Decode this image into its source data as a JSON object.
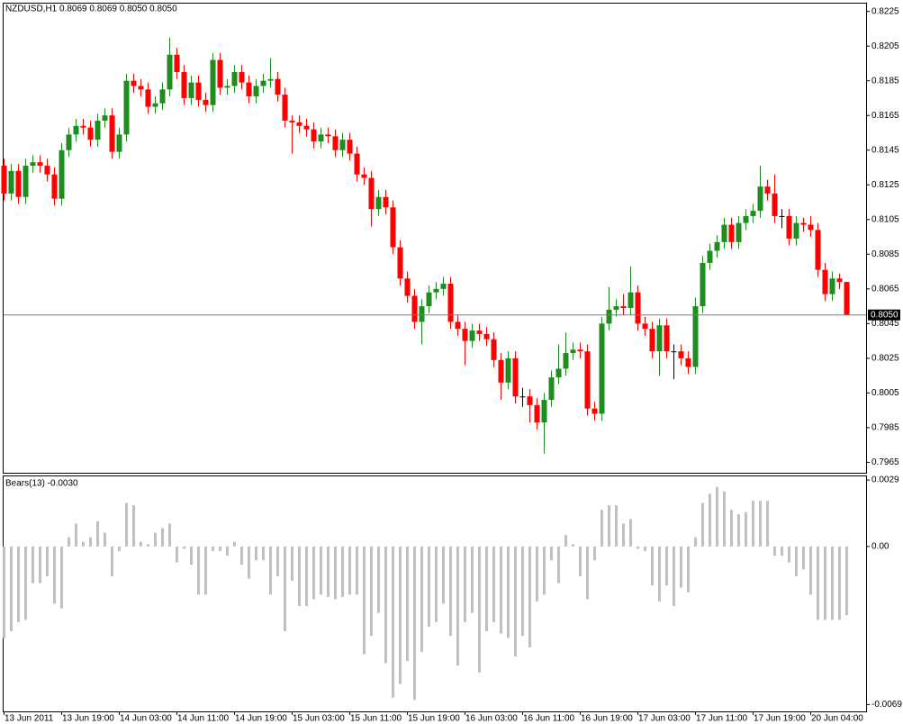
{
  "chart_data": [
    {
      "type": "candlestick",
      "title": "NZDUSD,H1  0.8069 0.8069 0.8050 0.8050",
      "categories": [
        "13 Jun 2011",
        null,
        null,
        null,
        null,
        null,
        null,
        null,
        "13 Jun 19:00",
        null,
        null,
        null,
        null,
        null,
        null,
        null,
        "14 Jun 03:00",
        null,
        null,
        null,
        null,
        null,
        null,
        null,
        "14 Jun 11:00",
        null,
        null,
        null,
        null,
        null,
        null,
        null,
        "14 Jun 19:00",
        null,
        null,
        null,
        null,
        null,
        null,
        null,
        "15 Jun 03:00",
        null,
        null,
        null,
        null,
        null,
        null,
        null,
        "15 Jun 11:00",
        null,
        null,
        null,
        null,
        null,
        null,
        null,
        "15 Jun 19:00",
        null,
        null,
        null,
        null,
        null,
        null,
        null,
        "16 Jun 03:00",
        null,
        null,
        null,
        null,
        null,
        null,
        null,
        "16 Jun 11:00",
        null,
        null,
        null,
        null,
        null,
        null,
        null,
        "16 Jun 19:00",
        null,
        null,
        null,
        null,
        null,
        null,
        null,
        "17 Jun 03:00",
        null,
        null,
        null,
        null,
        null,
        null,
        null,
        "17 Jun 11:00",
        null,
        null,
        null,
        null,
        null,
        null,
        null,
        "17 Jun 19:00",
        null,
        null,
        null,
        null,
        null,
        null,
        null,
        "20 Jun 04:00",
        null,
        null,
        null,
        null,
        null
      ],
      "open": [
        0.8136,
        0.812,
        0.8133,
        0.8118,
        0.8136,
        0.8138,
        0.8136,
        0.8131,
        0.8117,
        0.8145,
        0.8154,
        0.8159,
        0.8158,
        0.8151,
        0.8162,
        0.8165,
        0.8144,
        0.8154,
        0.8185,
        0.8182,
        0.818,
        0.817,
        0.8172,
        0.818,
        0.82,
        0.819,
        0.8175,
        0.8184,
        0.8174,
        0.8171,
        0.8197,
        0.8181,
        0.8182,
        0.819,
        0.8184,
        0.8176,
        0.8182,
        0.8185,
        0.8186,
        0.8177,
        0.8162,
        0.8161,
        0.8159,
        0.8157,
        0.815,
        0.8154,
        0.8153,
        0.8145,
        0.8151,
        0.8143,
        0.8131,
        0.8129,
        0.8111,
        0.8118,
        0.8112,
        0.8089,
        0.8071,
        0.8061,
        0.8046,
        0.8055,
        0.8063,
        0.8065,
        0.8068,
        0.8046,
        0.8042,
        0.8035,
        0.8041,
        0.8039,
        0.8036,
        0.8024,
        0.8011,
        0.8025,
        0.8003,
        0.8003,
        0.7998,
        0.7988,
        0.8001,
        0.8014,
        0.8019,
        0.8028,
        0.803,
        0.8029,
        0.7996,
        0.7993,
        0.8045,
        0.8053,
        0.8055,
        0.8054,
        0.8063,
        0.8045,
        0.8042,
        0.8029,
        0.8044,
        0.8029,
        0.8029,
        0.8025,
        0.802,
        0.8055,
        0.808,
        0.8087,
        0.8092,
        0.8102,
        0.8092,
        0.8103,
        0.8107,
        0.811,
        0.8124,
        0.812,
        0.8107,
        0.8107,
        0.8094,
        0.8103,
        0.8102,
        0.8099,
        0.8076,
        0.8062,
        0.8071,
        0.8069
      ],
      "high": [
        0.814,
        0.8137,
        0.8137,
        0.814,
        0.8142,
        0.8142,
        0.814,
        0.8135,
        0.8149,
        0.8158,
        0.8163,
        0.8163,
        0.8162,
        0.8166,
        0.8169,
        0.8169,
        0.8158,
        0.8189,
        0.8189,
        0.8186,
        0.8184,
        0.8176,
        0.8184,
        0.821,
        0.8204,
        0.8194,
        0.8188,
        0.8188,
        0.8178,
        0.8201,
        0.8201,
        0.8186,
        0.8194,
        0.8194,
        0.8188,
        0.8186,
        0.8189,
        0.8198,
        0.819,
        0.8181,
        0.8165,
        0.8165,
        0.8163,
        0.8161,
        0.8158,
        0.8158,
        0.8157,
        0.8155,
        0.8155,
        0.8147,
        0.8135,
        0.8133,
        0.8122,
        0.8122,
        0.8116,
        0.8093,
        0.8075,
        0.8065,
        0.8059,
        0.8067,
        0.8069,
        0.8072,
        0.8072,
        0.805,
        0.8046,
        0.8045,
        0.8045,
        0.8043,
        0.804,
        0.8028,
        0.8029,
        0.8029,
        0.8008,
        0.8007,
        0.8002,
        0.8005,
        0.8018,
        0.8033,
        0.804,
        0.8034,
        0.8034,
        0.8033,
        0.8,
        0.8049,
        0.8066,
        0.8059,
        0.8062,
        0.8078,
        0.8067,
        0.8049,
        0.8046,
        0.8048,
        0.8048,
        0.8033,
        0.8033,
        0.8029,
        0.806,
        0.8084,
        0.8091,
        0.8096,
        0.8106,
        0.8106,
        0.8107,
        0.8111,
        0.8114,
        0.8136,
        0.8128,
        0.8131,
        0.8111,
        0.8111,
        0.8107,
        0.8106,
        0.8107,
        0.8103,
        0.808,
        0.8075,
        0.8074,
        0.8069
      ],
      "low": [
        0.8116,
        0.8116,
        0.8114,
        0.8114,
        0.8132,
        0.8132,
        0.8127,
        0.8113,
        0.8113,
        0.8141,
        0.815,
        0.8154,
        0.8147,
        0.8147,
        0.8158,
        0.814,
        0.814,
        0.815,
        0.8178,
        0.8176,
        0.8166,
        0.8166,
        0.8168,
        0.8176,
        0.8186,
        0.8171,
        0.8171,
        0.817,
        0.8167,
        0.8167,
        0.8177,
        0.8177,
        0.8178,
        0.818,
        0.8172,
        0.8172,
        0.8178,
        0.8181,
        0.8173,
        0.8158,
        0.8143,
        0.8155,
        0.8153,
        0.8146,
        0.8146,
        0.8149,
        0.8141,
        0.8141,
        0.8139,
        0.8127,
        0.8125,
        0.8101,
        0.8107,
        0.8108,
        0.8085,
        0.8067,
        0.8057,
        0.8042,
        0.8033,
        0.8051,
        0.8059,
        0.8061,
        0.8042,
        0.8038,
        0.8021,
        0.8031,
        0.8035,
        0.8032,
        0.802,
        0.8001,
        0.8007,
        0.7999,
        0.7997,
        0.7988,
        0.7984,
        0.797,
        0.7997,
        0.801,
        0.8015,
        0.8024,
        0.8025,
        0.7992,
        0.7989,
        0.7989,
        0.8041,
        0.8049,
        0.805,
        0.805,
        0.8041,
        0.8038,
        0.8025,
        0.8015,
        0.8025,
        0.8013,
        0.8021,
        0.8016,
        0.8016,
        0.8051,
        0.8076,
        0.8083,
        0.8088,
        0.8088,
        0.8088,
        0.8099,
        0.8103,
        0.8106,
        0.8116,
        0.8103,
        0.81,
        0.809,
        0.809,
        0.8098,
        0.8095,
        0.8072,
        0.8058,
        0.8058,
        0.8065,
        0.805
      ],
      "close": [
        0.812,
        0.8133,
        0.8118,
        0.8136,
        0.8138,
        0.8136,
        0.8131,
        0.8117,
        0.8145,
        0.8154,
        0.8159,
        0.8158,
        0.8151,
        0.8162,
        0.8165,
        0.8144,
        0.8154,
        0.8185,
        0.8182,
        0.818,
        0.817,
        0.8172,
        0.818,
        0.82,
        0.819,
        0.8175,
        0.8184,
        0.8174,
        0.8171,
        0.8197,
        0.8181,
        0.8182,
        0.819,
        0.8184,
        0.8176,
        0.8182,
        0.8185,
        0.8186,
        0.8177,
        0.8162,
        0.8161,
        0.8159,
        0.8157,
        0.815,
        0.8154,
        0.8153,
        0.8145,
        0.8151,
        0.8143,
        0.8131,
        0.8129,
        0.8111,
        0.8118,
        0.8112,
        0.8089,
        0.8071,
        0.8061,
        0.8046,
        0.8055,
        0.8063,
        0.8065,
        0.8068,
        0.8046,
        0.8042,
        0.8035,
        0.8041,
        0.8039,
        0.8036,
        0.8024,
        0.8011,
        0.8025,
        0.8003,
        0.8003,
        0.7998,
        0.7988,
        0.8001,
        0.8014,
        0.8019,
        0.8028,
        0.803,
        0.8029,
        0.7996,
        0.7993,
        0.8045,
        0.8053,
        0.8055,
        0.8054,
        0.8063,
        0.8045,
        0.8042,
        0.8029,
        0.8044,
        0.8029,
        0.8029,
        0.8025,
        0.802,
        0.8055,
        0.808,
        0.8087,
        0.8092,
        0.8102,
        0.8092,
        0.8103,
        0.8107,
        0.811,
        0.8124,
        0.812,
        0.8107,
        0.8107,
        0.8094,
        0.8103,
        0.8102,
        0.8099,
        0.8076,
        0.8062,
        0.8071,
        0.8069,
        0.805
      ],
      "up_color": "#1e8c1e",
      "down_color": "#ff0000",
      "doji_color": "#000000",
      "ylim": [
        0.7959,
        0.823
      ],
      "yticks": [
        0.8225,
        0.8205,
        0.8185,
        0.8165,
        0.8145,
        0.8125,
        0.8105,
        0.8085,
        0.8065,
        0.8045,
        0.8025,
        0.8005,
        0.7985,
        0.7965
      ],
      "last_price": {
        "value": 0.805,
        "label": "0.8050"
      }
    },
    {
      "type": "bar",
      "title": "Bears(13) -0.0030",
      "color": "#c0c0c0",
      "values": [
        -0.004,
        -0.0037,
        -0.0033,
        -0.0032,
        -0.0016,
        -0.0016,
        -0.0013,
        -0.0025,
        -0.0027,
        0.0004,
        0.001,
        0.0002,
        0.0004,
        0.0011,
        0.0006,
        -0.0013,
        -0.0002,
        0.0019,
        0.0018,
        0.0002,
        0.0001,
        0.0006,
        0.0008,
        0.001,
        -0.0007,
        -0.0001,
        -0.0008,
        -0.0021,
        -0.0021,
        -0.0002,
        -0.0002,
        -0.0004,
        0.0002,
        -0.0008,
        -0.0014,
        -0.0006,
        -0.0006,
        -0.0021,
        -0.0013,
        -0.0037,
        -0.0015,
        -0.0026,
        -0.0026,
        -0.0023,
        -0.0021,
        -0.0022,
        -0.0023,
        -0.0022,
        -0.0021,
        -0.0021,
        -0.0047,
        -0.0039,
        -0.0029,
        -0.0051,
        -0.0066,
        -0.006,
        -0.005,
        -0.0067,
        -0.0046,
        -0.0035,
        -0.0033,
        -0.0025,
        -0.0039,
        -0.0052,
        -0.0033,
        -0.0029,
        -0.0055,
        -0.0037,
        -0.0033,
        -0.0038,
        -0.004,
        -0.0048,
        -0.0039,
        -0.0044,
        -0.0024,
        -0.0021,
        -0.0006,
        -0.0016,
        0.0005,
        0.0001,
        -0.0013,
        -0.0023,
        -0.0006,
        0.0016,
        0.0018,
        0.0018,
        0.001,
        0.0012,
        -0.0001,
        -0.0002,
        -0.0017,
        -0.0024,
        -0.0017,
        -0.0026,
        -0.0018,
        -0.002,
        0.0004,
        0.0019,
        0.0023,
        0.0026,
        0.0024,
        0.0016,
        0.0014,
        0.0015,
        0.002,
        0.002,
        0.002,
        -0.0004,
        -0.0004,
        -0.0007,
        -0.0013,
        -0.001,
        -0.0021,
        -0.0032,
        -0.0032,
        -0.0032,
        -0.0032,
        -0.003
      ],
      "ylim": [
        -0.0072,
        0.0031
      ],
      "yticks": [
        0.0029,
        {
          "value": 0,
          "label": "0.00"
        },
        -0.0069
      ]
    }
  ]
}
